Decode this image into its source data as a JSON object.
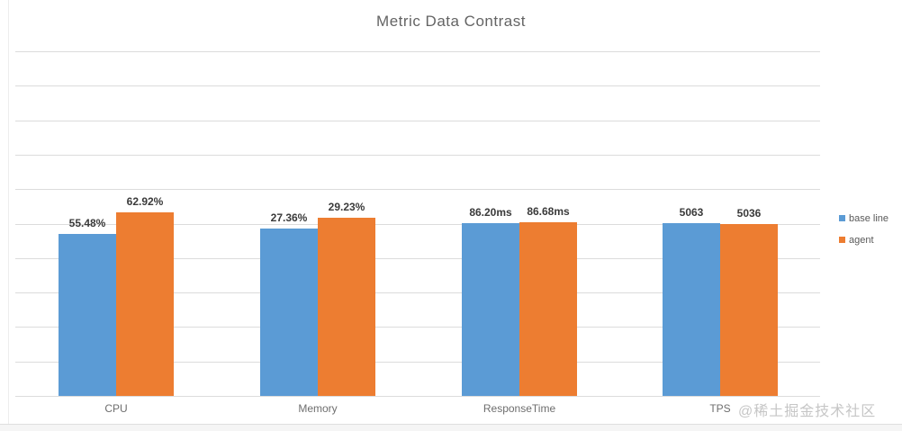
{
  "title": "Metric Data Contrast",
  "watermark": "@稀土掘金技术社区",
  "legend": {
    "items": [
      {
        "label": "base line",
        "color": "#5b9bd5"
      },
      {
        "label": "agent",
        "color": "#ed7d31"
      }
    ]
  },
  "chart_data": {
    "type": "bar",
    "title": "Metric Data Contrast",
    "categories": [
      "CPU",
      "Memory",
      "ResponseTime",
      "TPS"
    ],
    "series": [
      {
        "name": "base line",
        "color": "#5b9bd5",
        "values": [
          55.48,
          27.36,
          86.2,
          5063
        ],
        "data_labels": [
          "55.48%",
          "27.36%",
          "86.20ms",
          "5063"
        ]
      },
      {
        "name": "agent",
        "color": "#ed7d31",
        "values": [
          62.92,
          29.23,
          86.68,
          5036
        ],
        "data_labels": [
          "62.92%",
          "29.23%",
          "86.68ms",
          "5036"
        ]
      }
    ],
    "grid": true,
    "gridline_count": 11,
    "gridline_color": "#dcdcdc",
    "legend_position": "right",
    "y_axis_tick_labels_visible": false,
    "per_category_axis_max": [
      118,
      56.4,
      172,
      10090
    ]
  },
  "colors": {
    "background": "#ffffff",
    "bar_blue": "#5b9bd5",
    "bar_orange": "#ed7d31",
    "title_text": "#646464",
    "axis_text": "#6e6e6e",
    "data_label_text": "#3a3a3a",
    "watermark_text": "#c6c6c6"
  }
}
